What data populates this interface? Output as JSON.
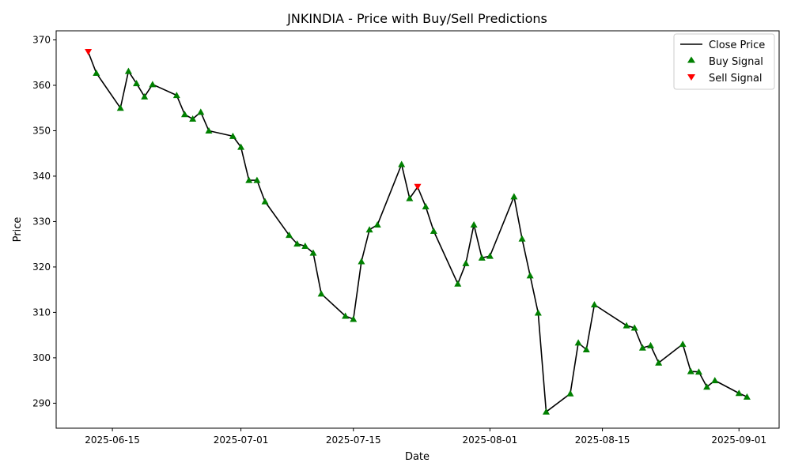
{
  "chart_data": {
    "type": "line",
    "title": "JNKINDIA - Price with Buy/Sell Predictions",
    "xlabel": "Date",
    "ylabel": "Price",
    "xlim": [
      "2025-06-08",
      "2025-09-06"
    ],
    "ylim": [
      284.5,
      372.0
    ],
    "x_ticks": [
      "2025-06-15",
      "2025-07-01",
      "2025-07-15",
      "2025-08-01",
      "2025-08-15",
      "2025-09-01"
    ],
    "y_ticks": [
      290,
      300,
      310,
      320,
      330,
      340,
      350,
      360,
      370
    ],
    "grid": false,
    "legend_position": "top-right",
    "legend": [
      {
        "key": "close",
        "label": "Close Price"
      },
      {
        "key": "buy",
        "label": "Buy Signal"
      },
      {
        "key": "sell",
        "label": "Sell Signal"
      }
    ],
    "colors": {
      "close": "#000000",
      "buy": "#008000",
      "sell": "#ff0000"
    },
    "series": [
      {
        "name": "Close Price",
        "points": [
          [
            "2025-06-12",
            367.3
          ],
          [
            "2025-06-13",
            362.7
          ],
          [
            "2025-06-16",
            355.0
          ],
          [
            "2025-06-17",
            363.1
          ],
          [
            "2025-06-18",
            360.4
          ],
          [
            "2025-06-19",
            357.5
          ],
          [
            "2025-06-20",
            360.2
          ],
          [
            "2025-06-23",
            357.8
          ],
          [
            "2025-06-24",
            353.6
          ],
          [
            "2025-06-25",
            352.6
          ],
          [
            "2025-06-26",
            354.1
          ],
          [
            "2025-06-27",
            350.0
          ],
          [
            "2025-06-30",
            348.8
          ],
          [
            "2025-07-01",
            346.4
          ],
          [
            "2025-07-02",
            339.1
          ],
          [
            "2025-07-03",
            339.1
          ],
          [
            "2025-07-04",
            334.4
          ],
          [
            "2025-07-07",
            327.0
          ],
          [
            "2025-07-08",
            325.1
          ],
          [
            "2025-07-09",
            324.6
          ],
          [
            "2025-07-10",
            323.1
          ],
          [
            "2025-07-11",
            314.1
          ],
          [
            "2025-07-14",
            309.2
          ],
          [
            "2025-07-15",
            308.5
          ],
          [
            "2025-07-16",
            321.2
          ],
          [
            "2025-07-17",
            328.2
          ],
          [
            "2025-07-18",
            329.3
          ],
          [
            "2025-07-21",
            342.6
          ],
          [
            "2025-07-22",
            335.1
          ],
          [
            "2025-07-23",
            337.6
          ],
          [
            "2025-07-24",
            333.3
          ],
          [
            "2025-07-25",
            327.9
          ],
          [
            "2025-07-28",
            316.3
          ],
          [
            "2025-07-29",
            320.8
          ],
          [
            "2025-07-30",
            329.3
          ],
          [
            "2025-07-31",
            322.0
          ],
          [
            "2025-08-01",
            322.4
          ],
          [
            "2025-08-04",
            335.5
          ],
          [
            "2025-08-05",
            326.2
          ],
          [
            "2025-08-06",
            318.1
          ],
          [
            "2025-08-07",
            309.9
          ],
          [
            "2025-08-08",
            288.1
          ],
          [
            "2025-08-11",
            292.1
          ],
          [
            "2025-08-12",
            303.3
          ],
          [
            "2025-08-13",
            301.8
          ],
          [
            "2025-08-14",
            311.7
          ],
          [
            "2025-08-18",
            307.1
          ],
          [
            "2025-08-19",
            306.6
          ],
          [
            "2025-08-20",
            302.2
          ],
          [
            "2025-08-21",
            302.7
          ],
          [
            "2025-08-22",
            298.9
          ],
          [
            "2025-08-25",
            303.0
          ],
          [
            "2025-08-26",
            297.0
          ],
          [
            "2025-08-27",
            296.9
          ],
          [
            "2025-08-28",
            293.6
          ],
          [
            "2025-08-29",
            295.0
          ],
          [
            "2025-09-01",
            292.2
          ],
          [
            "2025-09-02",
            291.4
          ]
        ]
      }
    ],
    "sell_signal_dates": [
      "2025-06-12",
      "2025-07-23"
    ]
  }
}
